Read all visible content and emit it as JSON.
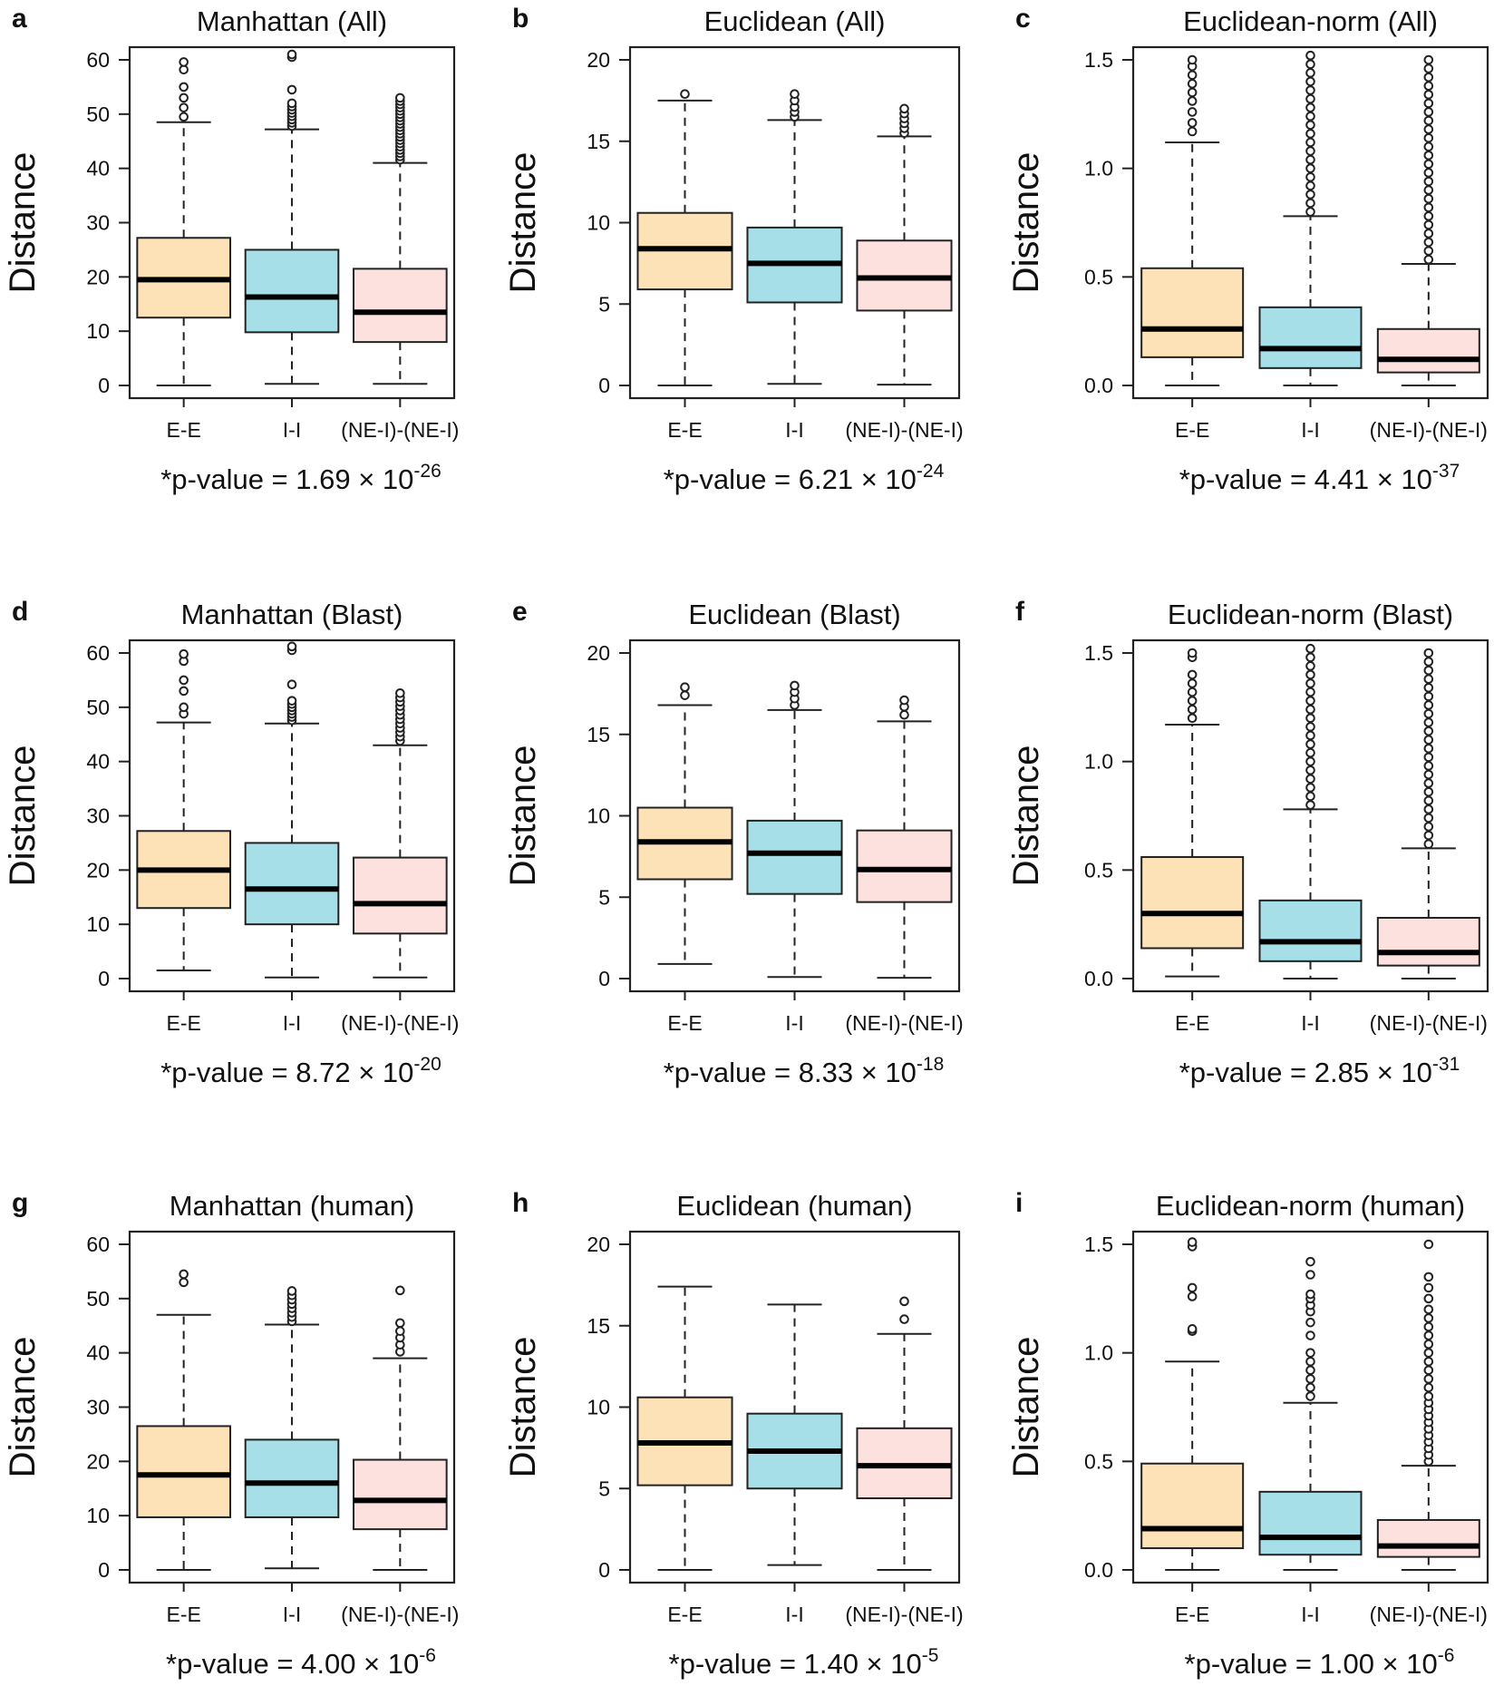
{
  "figure": {
    "colors": {
      "E-E": "#fde2b8",
      "I-I": "#a6dfe8",
      "NE": "#fde1df",
      "stroke": "#222222"
    }
  },
  "chart_data": [
    {
      "type": "boxplot",
      "letter": "a",
      "title": "Manhattan (All)",
      "ylabel": "Distance",
      "categories": [
        "E-E",
        "I-I",
        "(NE-I)-(NE-I)"
      ],
      "ylim": [
        0,
        60
      ],
      "yticks": [
        0,
        10,
        20,
        30,
        40,
        50,
        60
      ],
      "p_text": "*p-value = 1.69 × 10",
      "p_exp": "-26",
      "boxes": [
        {
          "name": "E-E",
          "min": 0,
          "q1": 12.5,
          "median": 19.5,
          "q3": 27.2,
          "max": 48.5,
          "outliers": [
            49.5,
            51.2,
            53.0,
            55.0,
            58.2,
            59.6
          ]
        },
        {
          "name": "I-I",
          "min": 0.3,
          "q1": 9.8,
          "median": 16.3,
          "q3": 25.0,
          "max": 47.2,
          "outliers": [
            47.8,
            48.4,
            49.0,
            49.6,
            50.2,
            50.8,
            51.4,
            52.0,
            54.5,
            60.5,
            61.0
          ]
        },
        {
          "name": "(NE-I)-(NE-I)",
          "min": 0.3,
          "q1": 8.0,
          "median": 13.5,
          "q3": 21.5,
          "max": 41.0,
          "outliers": [
            41.6,
            42.2,
            42.8,
            43.4,
            44.0,
            44.6,
            45.2,
            45.8,
            46.4,
            47.0,
            47.6,
            48.2,
            48.8,
            49.4,
            50.0,
            50.6,
            51.2,
            51.8,
            52.4,
            53.0
          ]
        }
      ]
    },
    {
      "type": "boxplot",
      "letter": "b",
      "title": "Euclidean (All)",
      "ylabel": "Distance",
      "categories": [
        "E-E",
        "I-I",
        "(NE-I)-(NE-I)"
      ],
      "ylim": [
        0,
        20
      ],
      "yticks": [
        0,
        5,
        10,
        15,
        20
      ],
      "p_text": "*p-value = 6.21 × 10",
      "p_exp": "-24",
      "boxes": [
        {
          "name": "E-E",
          "min": 0,
          "q1": 5.9,
          "median": 8.4,
          "q3": 10.6,
          "max": 17.5,
          "outliers": [
            17.9
          ]
        },
        {
          "name": "I-I",
          "min": 0.1,
          "q1": 5.1,
          "median": 7.5,
          "q3": 9.7,
          "max": 16.3,
          "outliers": [
            16.5,
            16.8,
            17.1,
            17.5,
            17.9
          ]
        },
        {
          "name": "(NE-I)-(NE-I)",
          "min": 0.05,
          "q1": 4.6,
          "median": 6.6,
          "q3": 8.9,
          "max": 15.3,
          "outliers": [
            15.5,
            15.8,
            16.1,
            16.4,
            16.7,
            17.0
          ]
        }
      ]
    },
    {
      "type": "boxplot",
      "letter": "c",
      "title": "Euclidean-norm (All)",
      "ylabel": "Distance",
      "categories": [
        "E-E",
        "I-I",
        "(NE-I)-(NE-I)"
      ],
      "ylim": [
        0,
        1.5
      ],
      "yticks": [
        0.0,
        0.5,
        1.0,
        1.5
      ],
      "ytick_labels": [
        "0.0",
        "0.5",
        "1.0",
        "1.5"
      ],
      "p_text": "*p-value = 4.41 × 10",
      "p_exp": "-37",
      "boxes": [
        {
          "name": "E-E",
          "min": 0,
          "q1": 0.13,
          "median": 0.26,
          "q3": 0.54,
          "max": 1.12,
          "outliers": [
            1.17,
            1.21,
            1.26,
            1.31,
            1.35,
            1.39,
            1.43,
            1.47,
            1.5
          ]
        },
        {
          "name": "I-I",
          "min": 0,
          "q1": 0.08,
          "median": 0.17,
          "q3": 0.36,
          "max": 0.78,
          "outliers": [
            0.8,
            0.84,
            0.88,
            0.92,
            0.96,
            1.0,
            1.04,
            1.08,
            1.12,
            1.16,
            1.2,
            1.24,
            1.28,
            1.32,
            1.36,
            1.4,
            1.44,
            1.48,
            1.52
          ]
        },
        {
          "name": "(NE-I)-(NE-I)",
          "min": 0,
          "q1": 0.06,
          "median": 0.12,
          "q3": 0.26,
          "max": 0.56,
          "outliers": [
            0.58,
            0.62,
            0.66,
            0.7,
            0.74,
            0.78,
            0.82,
            0.86,
            0.9,
            0.94,
            0.98,
            1.02,
            1.06,
            1.1,
            1.14,
            1.18,
            1.22,
            1.26,
            1.3,
            1.34,
            1.38,
            1.42,
            1.46,
            1.5
          ]
        }
      ]
    },
    {
      "type": "boxplot",
      "letter": "d",
      "title": "Manhattan (Blast)",
      "ylabel": "Distance",
      "categories": [
        "E-E",
        "I-I",
        "(NE-I)-(NE-I)"
      ],
      "ylim": [
        0,
        60
      ],
      "yticks": [
        0,
        10,
        20,
        30,
        40,
        50,
        60
      ],
      "p_text": "*p-value = 8.72 × 10",
      "p_exp": "-20",
      "boxes": [
        {
          "name": "E-E",
          "min": 1.5,
          "q1": 13.0,
          "median": 20.0,
          "q3": 27.2,
          "max": 47.2,
          "outliers": [
            48.8,
            50.0,
            53.0,
            55.0,
            58.5,
            59.8
          ]
        },
        {
          "name": "I-I",
          "min": 0.2,
          "q1": 10.0,
          "median": 16.5,
          "q3": 25.0,
          "max": 47.0,
          "outliers": [
            47.6,
            48.2,
            48.8,
            49.4,
            50.0,
            50.6,
            51.2,
            54.2,
            60.5,
            61.2
          ]
        },
        {
          "name": "(NE-I)-(NE-I)",
          "min": 0.2,
          "q1": 8.3,
          "median": 13.8,
          "q3": 22.3,
          "max": 43.0,
          "outliers": [
            43.8,
            44.6,
            45.4,
            46.2,
            47.0,
            47.8,
            48.6,
            49.4,
            50.2,
            51.0,
            51.8,
            52.6
          ]
        }
      ]
    },
    {
      "type": "boxplot",
      "letter": "e",
      "title": "Euclidean (Blast)",
      "ylabel": "Distance",
      "categories": [
        "E-E",
        "I-I",
        "(NE-I)-(NE-I)"
      ],
      "ylim": [
        0,
        20
      ],
      "yticks": [
        0,
        5,
        10,
        15,
        20
      ],
      "p_text": "*p-value = 8.33 × 10",
      "p_exp": "-18",
      "boxes": [
        {
          "name": "E-E",
          "min": 0.9,
          "q1": 6.1,
          "median": 8.4,
          "q3": 10.5,
          "max": 16.8,
          "outliers": [
            17.4,
            17.9
          ]
        },
        {
          "name": "I-I",
          "min": 0.1,
          "q1": 5.2,
          "median": 7.7,
          "q3": 9.7,
          "max": 16.5,
          "outliers": [
            16.8,
            17.2,
            17.6,
            18.0
          ]
        },
        {
          "name": "(NE-I)-(NE-I)",
          "min": 0.05,
          "q1": 4.7,
          "median": 6.7,
          "q3": 9.1,
          "max": 15.8,
          "outliers": [
            16.2,
            16.7,
            17.1
          ]
        }
      ]
    },
    {
      "type": "boxplot",
      "letter": "f",
      "title": "Euclidean-norm (Blast)",
      "ylabel": "Distance",
      "categories": [
        "E-E",
        "I-I",
        "(NE-I)-(NE-I)"
      ],
      "ylim": [
        0,
        1.5
      ],
      "yticks": [
        0.0,
        0.5,
        1.0,
        1.5
      ],
      "ytick_labels": [
        "0.0",
        "0.5",
        "1.0",
        "1.5"
      ],
      "p_text": "*p-value = 2.85 × 10",
      "p_exp": "-31",
      "boxes": [
        {
          "name": "E-E",
          "min": 0.01,
          "q1": 0.14,
          "median": 0.3,
          "q3": 0.56,
          "max": 1.17,
          "outliers": [
            1.2,
            1.24,
            1.28,
            1.32,
            1.36,
            1.4,
            1.48,
            1.5
          ]
        },
        {
          "name": "I-I",
          "min": 0,
          "q1": 0.08,
          "median": 0.17,
          "q3": 0.36,
          "max": 0.78,
          "outliers": [
            0.8,
            0.84,
            0.88,
            0.92,
            0.96,
            1.0,
            1.04,
            1.08,
            1.12,
            1.16,
            1.2,
            1.24,
            1.28,
            1.32,
            1.36,
            1.4,
            1.44,
            1.48,
            1.52
          ]
        },
        {
          "name": "(NE-I)-(NE-I)",
          "min": 0,
          "q1": 0.06,
          "median": 0.12,
          "q3": 0.28,
          "max": 0.6,
          "outliers": [
            0.62,
            0.66,
            0.7,
            0.74,
            0.78,
            0.82,
            0.86,
            0.9,
            0.94,
            0.98,
            1.02,
            1.06,
            1.1,
            1.14,
            1.18,
            1.22,
            1.26,
            1.3,
            1.34,
            1.38,
            1.42,
            1.46,
            1.5
          ]
        }
      ]
    },
    {
      "type": "boxplot",
      "letter": "g",
      "title": "Manhattan (human)",
      "ylabel": "Distance",
      "categories": [
        "E-E",
        "I-I",
        "(NE-I)-(NE-I)"
      ],
      "ylim": [
        0,
        60
      ],
      "yticks": [
        0,
        10,
        20,
        30,
        40,
        50,
        60
      ],
      "p_text": "*p-value = 4.00 × 10",
      "p_exp": "-6",
      "boxes": [
        {
          "name": "E-E",
          "min": 0,
          "q1": 9.7,
          "median": 17.5,
          "q3": 26.5,
          "max": 47.0,
          "outliers": [
            53.0,
            54.5
          ]
        },
        {
          "name": "I-I",
          "min": 0.3,
          "q1": 9.7,
          "median": 16.0,
          "q3": 24.0,
          "max": 45.2,
          "outliers": [
            45.8,
            46.6,
            47.4,
            48.2,
            49.0,
            49.8,
            50.6,
            51.4
          ]
        },
        {
          "name": "(NE-I)-(NE-I)",
          "min": 0,
          "q1": 7.5,
          "median": 12.8,
          "q3": 20.3,
          "max": 39.0,
          "outliers": [
            40.2,
            41.5,
            42.8,
            44.0,
            45.5,
            51.5
          ]
        }
      ]
    },
    {
      "type": "boxplot",
      "letter": "h",
      "title": "Euclidean (human)",
      "ylabel": "Distance",
      "categories": [
        "E-E",
        "I-I",
        "(NE-I)-(NE-I)"
      ],
      "ylim": [
        0,
        20
      ],
      "yticks": [
        0,
        5,
        10,
        15,
        20
      ],
      "p_text": "*p-value = 1.40 × 10",
      "p_exp": "-5",
      "boxes": [
        {
          "name": "E-E",
          "min": 0,
          "q1": 5.2,
          "median": 7.8,
          "q3": 10.6,
          "max": 17.4,
          "outliers": []
        },
        {
          "name": "I-I",
          "min": 0.3,
          "q1": 5.0,
          "median": 7.3,
          "q3": 9.6,
          "max": 16.3,
          "outliers": []
        },
        {
          "name": "(NE-I)-(NE-I)",
          "min": 0,
          "q1": 4.4,
          "median": 6.4,
          "q3": 8.7,
          "max": 14.5,
          "outliers": [
            15.4,
            16.5
          ]
        }
      ]
    },
    {
      "type": "boxplot",
      "letter": "i",
      "title": "Euclidean-norm (human)",
      "ylabel": "Distance",
      "categories": [
        "E-E",
        "I-I",
        "(NE-I)-(NE-I)"
      ],
      "ylim": [
        0,
        1.5
      ],
      "yticks": [
        0.0,
        0.5,
        1.0,
        1.5
      ],
      "ytick_labels": [
        "0.0",
        "0.5",
        "1.0",
        "1.5"
      ],
      "p_text": "*p-value = 1.00 × 10",
      "p_exp": "-6",
      "boxes": [
        {
          "name": "E-E",
          "min": 0,
          "q1": 0.1,
          "median": 0.19,
          "q3": 0.49,
          "max": 0.96,
          "outliers": [
            1.1,
            1.11,
            1.26,
            1.3,
            1.49,
            1.51
          ]
        },
        {
          "name": "I-I",
          "min": 0,
          "q1": 0.07,
          "median": 0.15,
          "q3": 0.36,
          "max": 0.77,
          "outliers": [
            0.8,
            0.84,
            0.88,
            0.92,
            0.96,
            1.0,
            1.08,
            1.14,
            1.19,
            1.22,
            1.25,
            1.27,
            1.36,
            1.42
          ]
        },
        {
          "name": "(NE-I)-(NE-I)",
          "min": 0,
          "q1": 0.06,
          "median": 0.11,
          "q3": 0.23,
          "max": 0.48,
          "outliers": [
            0.5,
            0.53,
            0.56,
            0.59,
            0.62,
            0.65,
            0.68,
            0.71,
            0.74,
            0.77,
            0.8,
            0.84,
            0.88,
            0.92,
            0.96,
            1.0,
            1.04,
            1.08,
            1.12,
            1.16,
            1.2,
            1.25,
            1.3,
            1.35,
            1.5
          ]
        }
      ]
    }
  ]
}
